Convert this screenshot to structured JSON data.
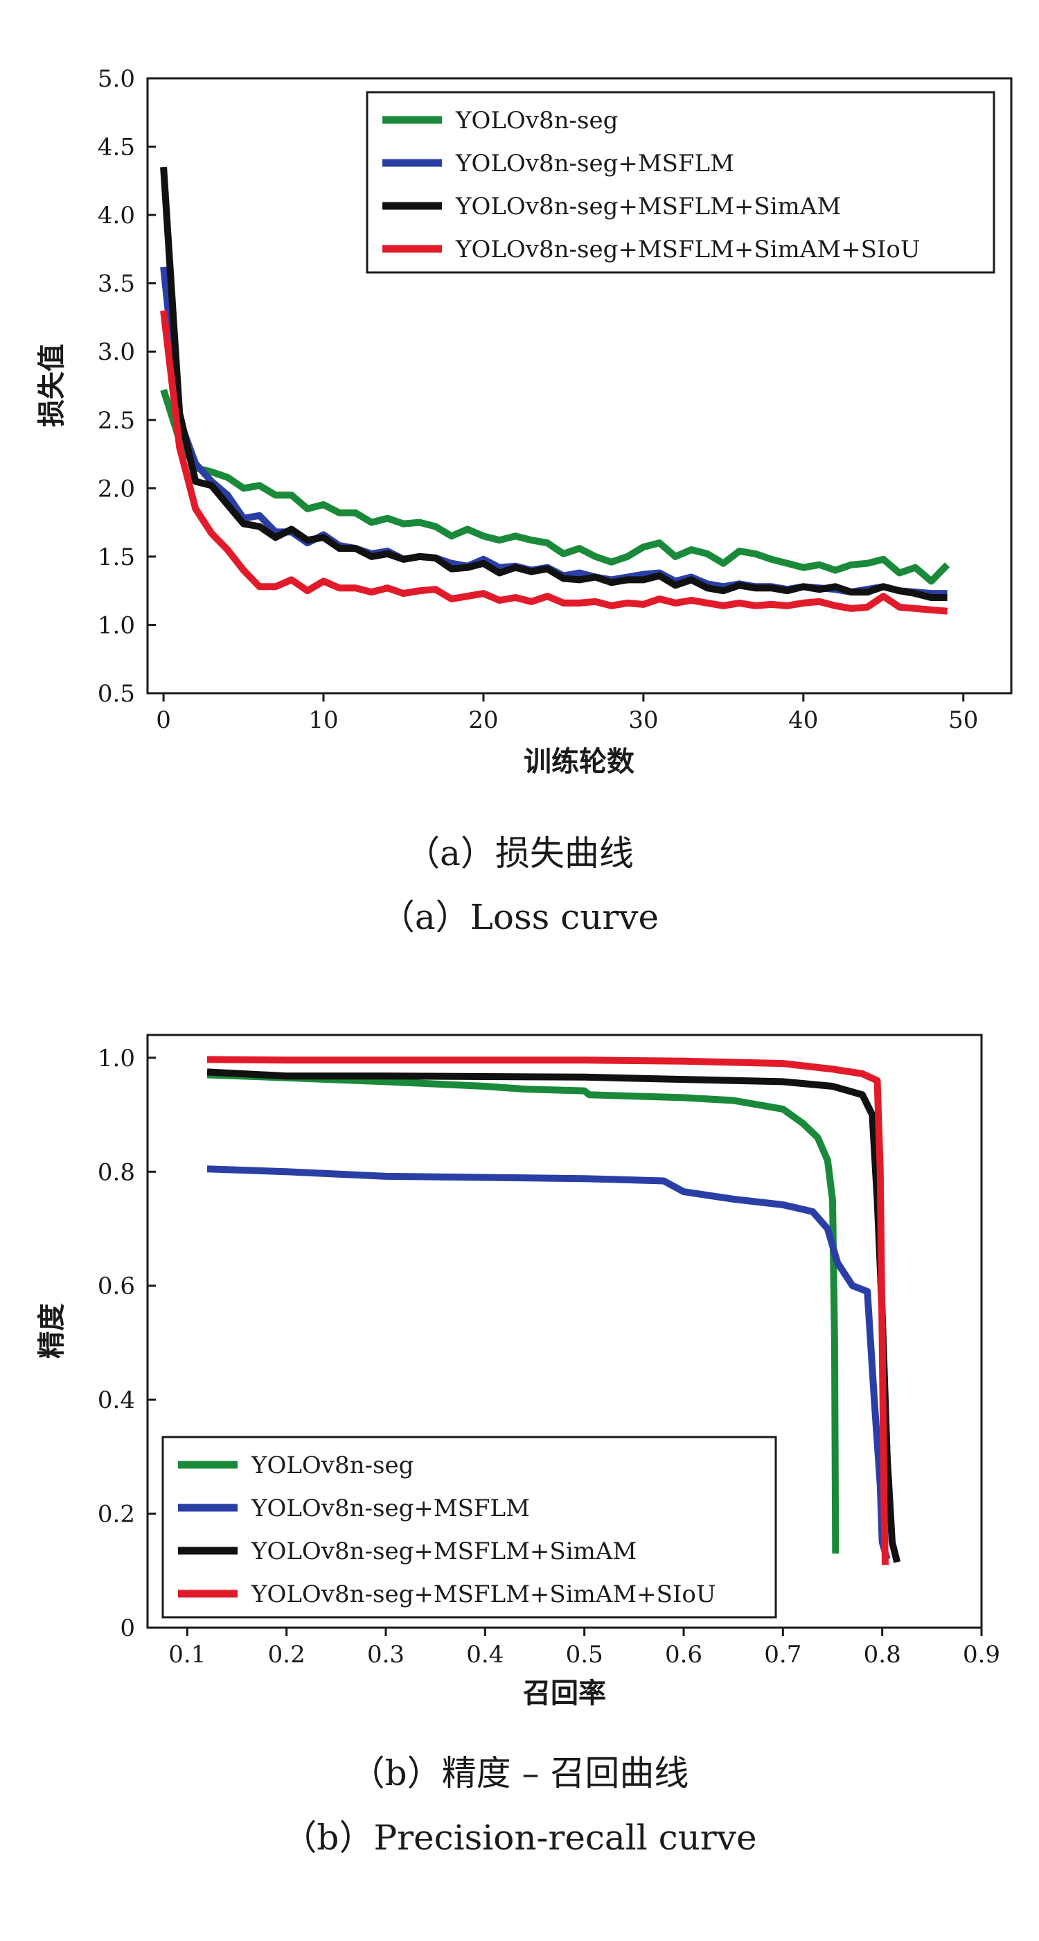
{
  "chart_data": [
    {
      "id": "loss",
      "type": "line",
      "caption_zh": "（a）损失曲线",
      "caption_en": "（a）Loss curve",
      "xlabel": "训练轮数",
      "ylabel": "损失值",
      "xlim": [
        -1,
        53
      ],
      "ylim": [
        0.5,
        5.0
      ],
      "x_ticks": [
        0,
        10,
        20,
        30,
        40,
        50
      ],
      "y_ticks": [
        0.5,
        1.0,
        1.5,
        2.0,
        2.5,
        3.0,
        3.5,
        4.0,
        4.5,
        5.0
      ],
      "y_tick_labels": [
        "0.5",
        "1.0",
        "1.5",
        "2.0",
        "2.5",
        "3.0",
        "3.5",
        "4.0",
        "4.5",
        "5.0"
      ],
      "x_tick_labels": [
        "0",
        "10",
        "20",
        "30",
        "40",
        "50"
      ],
      "grid": false,
      "legend_position": "top-right",
      "x": [
        0,
        1,
        2,
        3,
        4,
        5,
        6,
        7,
        8,
        9,
        10,
        11,
        12,
        13,
        14,
        15,
        16,
        17,
        18,
        19,
        20,
        21,
        22,
        23,
        24,
        25,
        26,
        27,
        28,
        29,
        30,
        31,
        32,
        33,
        34,
        35,
        36,
        37,
        38,
        39,
        40,
        41,
        42,
        43,
        44,
        45,
        46,
        47,
        48,
        49
      ],
      "series": [
        {
          "name": "YOLOv8n-seg",
          "color": "#1a8a3a",
          "values": [
            2.72,
            2.35,
            2.15,
            2.12,
            2.08,
            2.0,
            2.02,
            1.95,
            1.95,
            1.85,
            1.88,
            1.82,
            1.82,
            1.75,
            1.78,
            1.74,
            1.75,
            1.72,
            1.65,
            1.7,
            1.65,
            1.62,
            1.65,
            1.62,
            1.6,
            1.52,
            1.56,
            1.5,
            1.46,
            1.5,
            1.57,
            1.6,
            1.5,
            1.55,
            1.52,
            1.45,
            1.54,
            1.52,
            1.48,
            1.45,
            1.42,
            1.44,
            1.4,
            1.44,
            1.45,
            1.48,
            1.38,
            1.42,
            1.32,
            1.44
          ]
        },
        {
          "name": "YOLOv8n-seg+MSFLM",
          "color": "#2a3fa6",
          "values": [
            3.62,
            2.5,
            2.18,
            2.05,
            1.95,
            1.78,
            1.8,
            1.68,
            1.68,
            1.6,
            1.66,
            1.58,
            1.56,
            1.52,
            1.54,
            1.48,
            1.5,
            1.49,
            1.45,
            1.43,
            1.48,
            1.42,
            1.43,
            1.4,
            1.42,
            1.36,
            1.38,
            1.35,
            1.33,
            1.35,
            1.37,
            1.38,
            1.32,
            1.35,
            1.3,
            1.28,
            1.3,
            1.28,
            1.28,
            1.26,
            1.28,
            1.27,
            1.26,
            1.24,
            1.26,
            1.28,
            1.25,
            1.24,
            1.23,
            1.23
          ]
        },
        {
          "name": "YOLOv8n-seg+MSFLM+SimAM",
          "color": "#111111",
          "values": [
            4.35,
            2.55,
            2.05,
            2.02,
            1.88,
            1.74,
            1.72,
            1.64,
            1.7,
            1.62,
            1.64,
            1.56,
            1.56,
            1.5,
            1.52,
            1.48,
            1.5,
            1.49,
            1.41,
            1.42,
            1.45,
            1.38,
            1.42,
            1.39,
            1.41,
            1.34,
            1.33,
            1.35,
            1.31,
            1.33,
            1.33,
            1.36,
            1.29,
            1.33,
            1.27,
            1.25,
            1.29,
            1.27,
            1.27,
            1.25,
            1.28,
            1.26,
            1.28,
            1.24,
            1.24,
            1.28,
            1.25,
            1.23,
            1.2,
            1.2
          ]
        },
        {
          "name": "YOLOv8n-seg+MSFLM+SimAM+SIoU",
          "color": "#e21b2a",
          "values": [
            3.3,
            2.3,
            1.85,
            1.67,
            1.55,
            1.4,
            1.28,
            1.28,
            1.33,
            1.25,
            1.32,
            1.27,
            1.27,
            1.24,
            1.27,
            1.23,
            1.25,
            1.26,
            1.19,
            1.21,
            1.23,
            1.18,
            1.2,
            1.17,
            1.21,
            1.16,
            1.16,
            1.17,
            1.14,
            1.16,
            1.15,
            1.19,
            1.16,
            1.18,
            1.16,
            1.14,
            1.16,
            1.14,
            1.15,
            1.14,
            1.16,
            1.17,
            1.14,
            1.12,
            1.13,
            1.21,
            1.13,
            1.12,
            1.11,
            1.1
          ]
        }
      ]
    },
    {
      "id": "pr",
      "type": "line",
      "caption_zh": "（b）精度 – 召回曲线",
      "caption_en": "（b）Precision-recall curve",
      "xlabel": "召回率",
      "ylabel": "精度",
      "xlim": [
        0.06,
        0.9
      ],
      "ylim": [
        0.0,
        1.04
      ],
      "x_ticks": [
        0.1,
        0.2,
        0.3,
        0.4,
        0.5,
        0.6,
        0.7,
        0.8,
        0.9
      ],
      "x_tick_labels": [
        "0.1",
        "0.2",
        "0.3",
        "0.4",
        "0.5",
        "0.6",
        "0.7",
        "0.8",
        "0.9"
      ],
      "y_ticks": [
        0.0,
        0.2,
        0.4,
        0.6,
        0.8,
        1.0
      ],
      "y_tick_labels": [
        "0",
        "0.2",
        "0.4",
        "0.6",
        "0.8",
        "1.0"
      ],
      "grid": false,
      "legend_position": "bottom-left",
      "series": [
        {
          "name": "YOLOv8n-seg",
          "color": "#1a8a3a",
          "points": [
            [
              0.12,
              0.97
            ],
            [
              0.2,
              0.965
            ],
            [
              0.3,
              0.958
            ],
            [
              0.4,
              0.95
            ],
            [
              0.44,
              0.945
            ],
            [
              0.5,
              0.942
            ],
            [
              0.505,
              0.935
            ],
            [
              0.6,
              0.93
            ],
            [
              0.65,
              0.925
            ],
            [
              0.7,
              0.91
            ],
            [
              0.72,
              0.885
            ],
            [
              0.735,
              0.86
            ],
            [
              0.745,
              0.82
            ],
            [
              0.75,
              0.75
            ],
            [
              0.752,
              0.5
            ],
            [
              0.753,
              0.13
            ]
          ]
        },
        {
          "name": "YOLOv8n-seg+MSFLM",
          "color": "#2a3fa6",
          "points": [
            [
              0.12,
              0.805
            ],
            [
              0.2,
              0.8
            ],
            [
              0.3,
              0.792
            ],
            [
              0.4,
              0.79
            ],
            [
              0.5,
              0.788
            ],
            [
              0.58,
              0.784
            ],
            [
              0.6,
              0.765
            ],
            [
              0.65,
              0.752
            ],
            [
              0.7,
              0.742
            ],
            [
              0.73,
              0.73
            ],
            [
              0.745,
              0.7
            ],
            [
              0.755,
              0.64
            ],
            [
              0.77,
              0.6
            ],
            [
              0.785,
              0.59
            ],
            [
              0.792,
              0.4
            ],
            [
              0.798,
              0.25
            ],
            [
              0.8,
              0.15
            ],
            [
              0.805,
              0.12
            ]
          ]
        },
        {
          "name": "YOLOv8n-seg+MSFLM+SimAM",
          "color": "#111111",
          "points": [
            [
              0.12,
              0.975
            ],
            [
              0.2,
              0.968
            ],
            [
              0.3,
              0.968
            ],
            [
              0.4,
              0.967
            ],
            [
              0.5,
              0.966
            ],
            [
              0.6,
              0.962
            ],
            [
              0.7,
              0.958
            ],
            [
              0.75,
              0.95
            ],
            [
              0.78,
              0.935
            ],
            [
              0.79,
              0.9
            ],
            [
              0.795,
              0.75
            ],
            [
              0.8,
              0.55
            ],
            [
              0.805,
              0.3
            ],
            [
              0.81,
              0.15
            ],
            [
              0.815,
              0.115
            ]
          ]
        },
        {
          "name": "YOLOv8n-seg+MSFLM+SimAM+SIoU",
          "color": "#e21b2a",
          "points": [
            [
              0.12,
              0.997
            ],
            [
              0.2,
              0.996
            ],
            [
              0.3,
              0.996
            ],
            [
              0.4,
              0.996
            ],
            [
              0.5,
              0.996
            ],
            [
              0.6,
              0.994
            ],
            [
              0.7,
              0.99
            ],
            [
              0.75,
              0.98
            ],
            [
              0.78,
              0.972
            ],
            [
              0.795,
              0.96
            ],
            [
              0.798,
              0.8
            ],
            [
              0.8,
              0.5
            ],
            [
              0.802,
              0.2
            ],
            [
              0.803,
              0.11
            ]
          ]
        }
      ]
    }
  ]
}
